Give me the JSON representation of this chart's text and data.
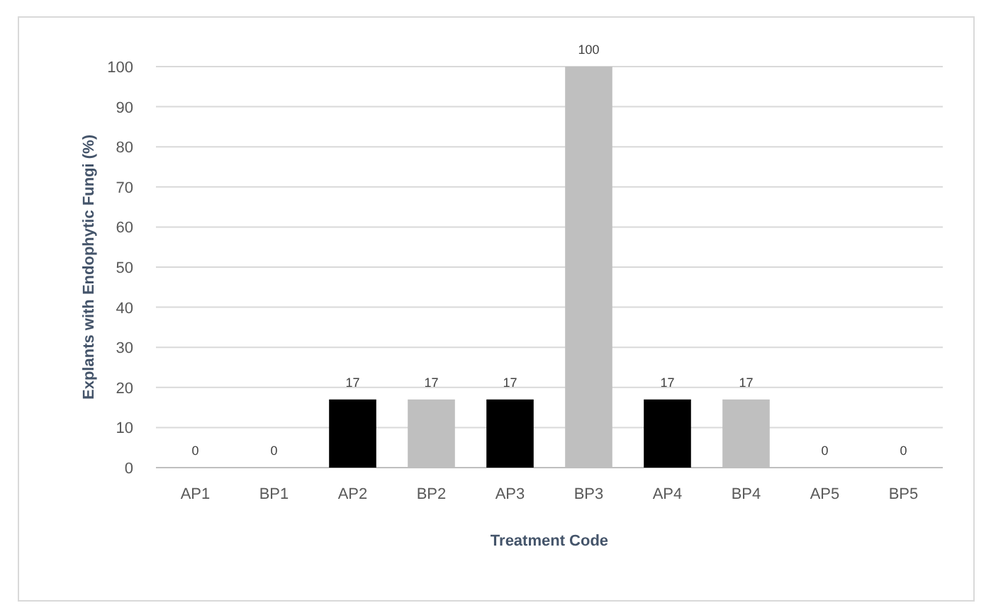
{
  "chart_data": {
    "type": "bar",
    "xlabel": "Treatment Code",
    "ylabel": "Explants with Endophytic Fungi (%)",
    "categories": [
      "AP1",
      "BP1",
      "AP2",
      "BP2",
      "AP3",
      "BP3",
      "AP4",
      "BP4",
      "AP5",
      "BP5"
    ],
    "values": [
      0,
      0,
      17,
      17,
      17,
      100,
      17,
      17,
      0,
      0
    ],
    "colors": [
      "#000000",
      "#bfbfbf",
      "#000000",
      "#bfbfbf",
      "#000000",
      "#bfbfbf",
      "#000000",
      "#bfbfbf",
      "#000000",
      "#bfbfbf"
    ],
    "ylim": [
      0,
      100
    ],
    "yticks": [
      0,
      10,
      20,
      30,
      40,
      50,
      60,
      70,
      80,
      90,
      100
    ],
    "grid": "y",
    "data_labels": true
  }
}
